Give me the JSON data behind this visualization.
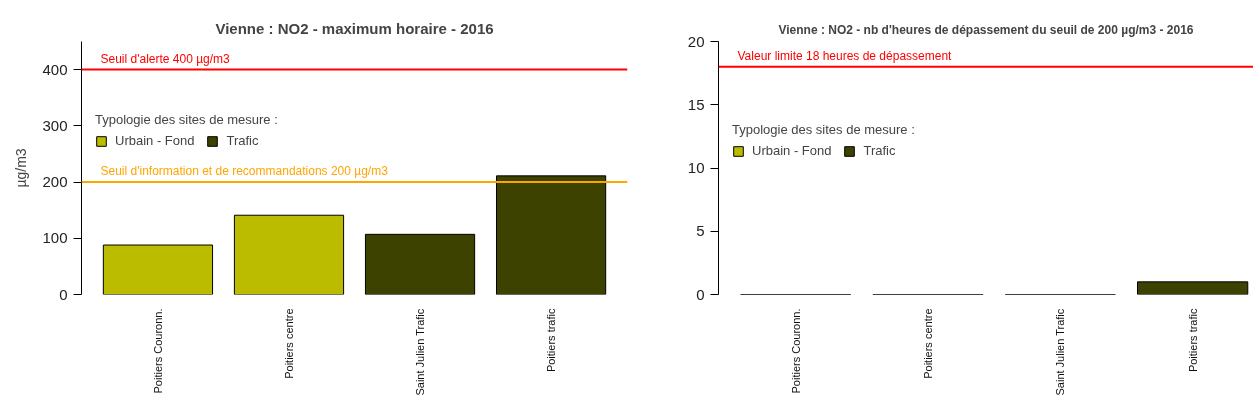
{
  "chart_data": [
    {
      "type": "bar",
      "title": "Vienne : NO2 - maximum horaire - 2016",
      "ylabel": "µg/m3",
      "categories": [
        "Poitiers Couronn.",
        "Poitiers centre",
        "Saint Julien Trafic",
        "Poitiers trafic"
      ],
      "stacked": true,
      "series": [
        {
          "name": "Urbain - Fond",
          "color": "#bbbb00",
          "values": [
            88,
            141,
            null,
            null
          ]
        },
        {
          "name": "Trafic",
          "color": "#3d4200",
          "values": [
            null,
            null,
            107,
            211
          ]
        }
      ],
      "legend_title": "Typologie des sites de mesure :",
      "legend": "top left",
      "ylim": [
        0,
        450
      ],
      "yticks": [
        0,
        100,
        200,
        300,
        400
      ],
      "ref_lines": [
        {
          "axis": "y",
          "value": 400,
          "label": "Seuil d'alerte 400 µg/m3",
          "color": "#ff0000"
        },
        {
          "axis": "y",
          "value": 200,
          "label": "Seuil d'information et de recommandations 200 µg/m3",
          "color": "#ffa500"
        }
      ]
    },
    {
      "type": "bar",
      "title": "Vienne : NO2 - nb d'heures de dépassement du seuil de 200 µg/m3 - 2016",
      "categories": [
        "Poitiers Couronn.",
        "Poitiers centre",
        "Saint Julien Trafic",
        "Poitiers trafic"
      ],
      "stacked": true,
      "series": [
        {
          "name": "Urbain - Fond",
          "color": "#bbbb00",
          "values": [
            0,
            0,
            null,
            null
          ]
        },
        {
          "name": "Trafic",
          "color": "#3d4200",
          "values": [
            null,
            null,
            0,
            1
          ]
        }
      ],
      "legend_title": "Typologie des sites de mesure :",
      "legend": "top left",
      "ylim": [
        0,
        20
      ],
      "yticks": [
        0,
        5,
        10,
        15,
        20
      ],
      "ref_lines": [
        {
          "axis": "y",
          "value": 18,
          "label": "Valeur limite 18 heures de dépassement",
          "color": "#ff0000"
        }
      ]
    }
  ]
}
